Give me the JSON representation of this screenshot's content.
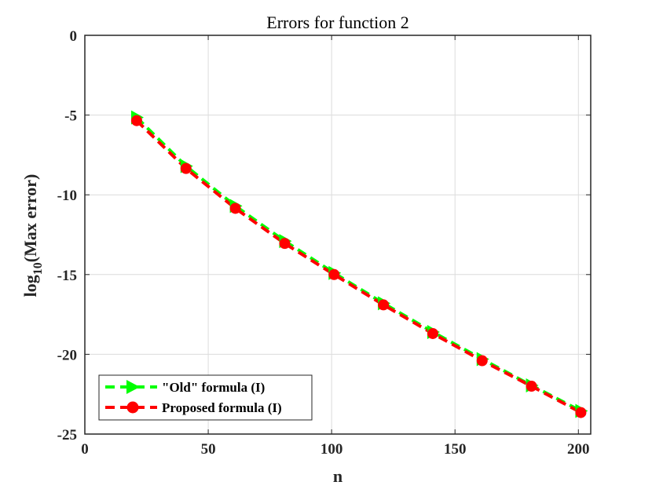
{
  "chart_data": {
    "type": "line",
    "title": "Errors for function 2",
    "xlabel": "n",
    "ylabel_main": "log",
    "ylabel_sub": "10",
    "ylabel_rest": "(Max error)",
    "xlim": [
      0,
      205
    ],
    "ylim": [
      -25,
      0
    ],
    "xticks": [
      "0",
      "50",
      "100",
      "150",
      "200"
    ],
    "yticks": [
      "0",
      "-5",
      "-10",
      "-15",
      "-20",
      "-25"
    ],
    "grid": true,
    "legend_position": "bottom-left",
    "x": [
      21,
      41,
      61,
      81,
      101,
      121,
      141,
      161,
      181,
      201
    ],
    "series": [
      {
        "name": "\"Old\" formula (I)",
        "color": "#00ff00",
        "marker": "triangle-right",
        "line": "dashed",
        "values": [
          -5.15,
          -8.2,
          -10.7,
          -12.9,
          -14.9,
          -16.8,
          -18.6,
          -20.3,
          -21.95,
          -23.55
        ]
      },
      {
        "name": "Proposed formula (I)",
        "color": "#ff0000",
        "marker": "circle",
        "line": "dashed",
        "values": [
          -5.35,
          -8.35,
          -10.85,
          -13.05,
          -15.0,
          -16.9,
          -18.7,
          -20.4,
          -22.0,
          -23.65
        ]
      }
    ]
  }
}
